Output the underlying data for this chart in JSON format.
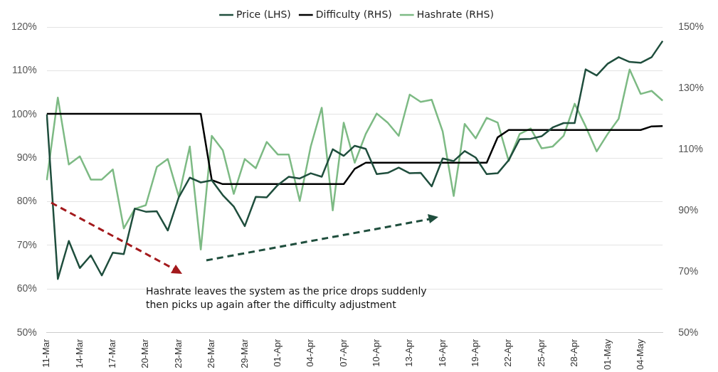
{
  "chart_data": {
    "type": "line",
    "categories": [
      "11-Mar",
      null,
      null,
      "14-Mar",
      null,
      null,
      "17-Mar",
      null,
      null,
      "20-Mar",
      null,
      null,
      "23-Mar",
      null,
      null,
      "26-Mar",
      null,
      null,
      "29-Mar",
      null,
      null,
      "01-Apr",
      null,
      null,
      "04-Apr",
      null,
      null,
      "07-Apr",
      null,
      null,
      "10-Apr",
      null,
      null,
      "13-Apr",
      null,
      null,
      "16-Apr",
      null,
      null,
      "19-Apr",
      null,
      null,
      "22-Apr",
      null,
      null,
      "25-Apr",
      null,
      null,
      "28-Apr",
      null,
      null,
      "01-May",
      null,
      null,
      "04-May",
      null,
      null
    ],
    "series": [
      {
        "name": "Price (LHS)",
        "color": "#1f4e3d",
        "values": [
          100,
          62.3,
          71,
          64.8,
          67.7,
          63.1,
          68.3,
          68,
          78.4,
          77.7,
          77.8,
          73.4,
          81,
          85.5,
          84.4,
          84.9,
          81.5,
          78.9,
          74.4,
          81.1,
          81,
          83.8,
          85.7,
          85.3,
          86.5,
          85.7,
          92,
          90.5,
          92.8,
          92.1,
          86.3,
          86.6,
          87.8,
          86.5,
          86.6,
          83.5,
          89.9,
          89.3,
          91.6,
          90.1,
          86.3,
          86.5,
          89.5,
          94.3,
          94.4,
          95,
          97,
          98,
          98,
          110.3,
          108.9,
          111.6,
          113.1,
          112,
          111.8,
          113.1,
          116.8
        ]
      },
      {
        "name": "Difficulty (RHS)",
        "color": "#000000",
        "axis": "y2",
        "values": [
          121.6,
          121.6,
          121.6,
          121.6,
          121.6,
          121.6,
          121.6,
          121.6,
          121.6,
          121.6,
          121.6,
          121.6,
          121.6,
          121.6,
          121.6,
          99.9,
          98.6,
          98.6,
          98.6,
          98.6,
          98.6,
          98.6,
          98.6,
          98.6,
          98.6,
          98.6,
          98.6,
          98.6,
          103.6,
          105.6,
          105.6,
          105.6,
          105.6,
          105.6,
          105.6,
          105.6,
          105.6,
          105.6,
          105.6,
          105.6,
          105.6,
          113.9,
          116.3,
          116.3,
          116.3,
          116.3,
          116.3,
          116.3,
          116.3,
          116.3,
          116.3,
          116.3,
          116.3,
          116.3,
          116.3,
          117.5,
          117.6
        ]
      },
      {
        "name": "Hashrate (RHS)",
        "color": "#7dba84",
        "axis": "y2",
        "values": [
          99.9,
          126.9,
          105,
          107.7,
          100.1,
          100.1,
          103.4,
          84.1,
          90.5,
          91.7,
          104.2,
          106.8,
          94.5,
          110.9,
          77.2,
          114.4,
          109.7,
          95.4,
          106.8,
          103.8,
          112.4,
          108.3,
          108.3,
          93.1,
          110.9,
          123.6,
          90,
          118.7,
          105.6,
          115,
          121.7,
          118.7,
          114.4,
          127.9,
          125.5,
          126.2,
          115.8,
          94.7,
          118.3,
          113.6,
          120.3,
          118.7,
          106.2,
          115,
          116.8,
          110.3,
          110.9,
          114.4,
          124.9,
          117.5,
          109.3,
          115,
          120,
          136.1,
          128.1,
          129.1,
          125.9
        ]
      }
    ],
    "ylim": [
      50,
      120
    ],
    "yticks": [
      {
        "value": 50,
        "label": "50%"
      },
      {
        "value": 60,
        "label": "60%"
      },
      {
        "value": 70,
        "label": "70%"
      },
      {
        "value": 80,
        "label": "80%"
      },
      {
        "value": 90,
        "label": "90%"
      },
      {
        "value": 100,
        "label": "100%"
      },
      {
        "value": 110,
        "label": "110%"
      },
      {
        "value": 120,
        "label": "120%"
      }
    ],
    "y2lim": [
      50,
      150
    ],
    "y2ticks": [
      {
        "value": 50,
        "label": "50%"
      },
      {
        "value": 70,
        "label": "70%"
      },
      {
        "value": 90,
        "label": "90%"
      },
      {
        "value": 110,
        "label": "110%"
      },
      {
        "value": 130,
        "label": "130%"
      },
      {
        "value": 150,
        "label": "150%"
      }
    ],
    "grid": "y",
    "legend": "top",
    "marker": "none",
    "line_style": "solid",
    "annotations": [
      "Hashrate leaves the system as the price drops suddenly\nthen picks up again after the difficulty adjustment"
    ]
  }
}
